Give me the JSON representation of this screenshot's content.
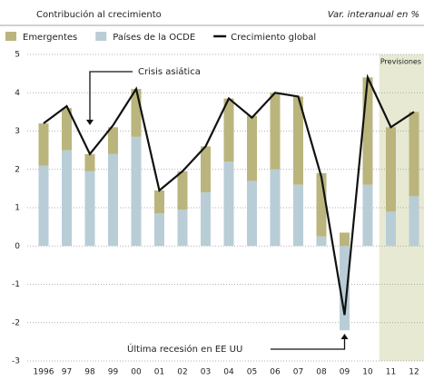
{
  "chart_data": {
    "type": "bar",
    "stacked": true,
    "subtitle": "Contribución al crecimiento",
    "unit_label": "Var. interanual en %",
    "categories": [
      "1996",
      "97",
      "98",
      "99",
      "00",
      "01",
      "02",
      "03",
      "04",
      "05",
      "06",
      "07",
      "08",
      "09",
      "10",
      "11",
      "12"
    ],
    "series": [
      {
        "name": "Emergentes",
        "color": "#bab57c",
        "type": "bar",
        "values": [
          1.1,
          1.1,
          0.45,
          0.7,
          1.25,
          0.6,
          1.0,
          1.2,
          1.65,
          1.7,
          2.0,
          2.3,
          1.65,
          0.35,
          2.8,
          2.2,
          2.2
        ]
      },
      {
        "name": "Países de la OCDE",
        "color": "#b9cdd7",
        "type": "bar",
        "values": [
          2.1,
          2.5,
          1.95,
          2.4,
          2.85,
          0.85,
          0.95,
          1.4,
          2.2,
          1.7,
          2.0,
          1.6,
          0.25,
          -2.2,
          1.6,
          0.9,
          1.3
        ]
      },
      {
        "name": "Crecimiento global",
        "color": "#111111",
        "type": "line",
        "values": [
          3.2,
          3.65,
          2.4,
          3.15,
          4.1,
          1.45,
          1.95,
          2.6,
          3.85,
          3.35,
          4.0,
          3.9,
          1.8,
          -1.8,
          4.4,
          3.1,
          3.5
        ]
      }
    ],
    "forecast_label": "Previsiones",
    "forecast_start": "11",
    "annotations": [
      {
        "text": "Crisis asiática",
        "category": "98"
      },
      {
        "text": "Última recesión en EE UU",
        "category": "09"
      }
    ],
    "ylim": [
      -3,
      5
    ],
    "yticks": [
      -3,
      -2,
      -1,
      0,
      1,
      2,
      3,
      4,
      5
    ],
    "grid": true
  }
}
